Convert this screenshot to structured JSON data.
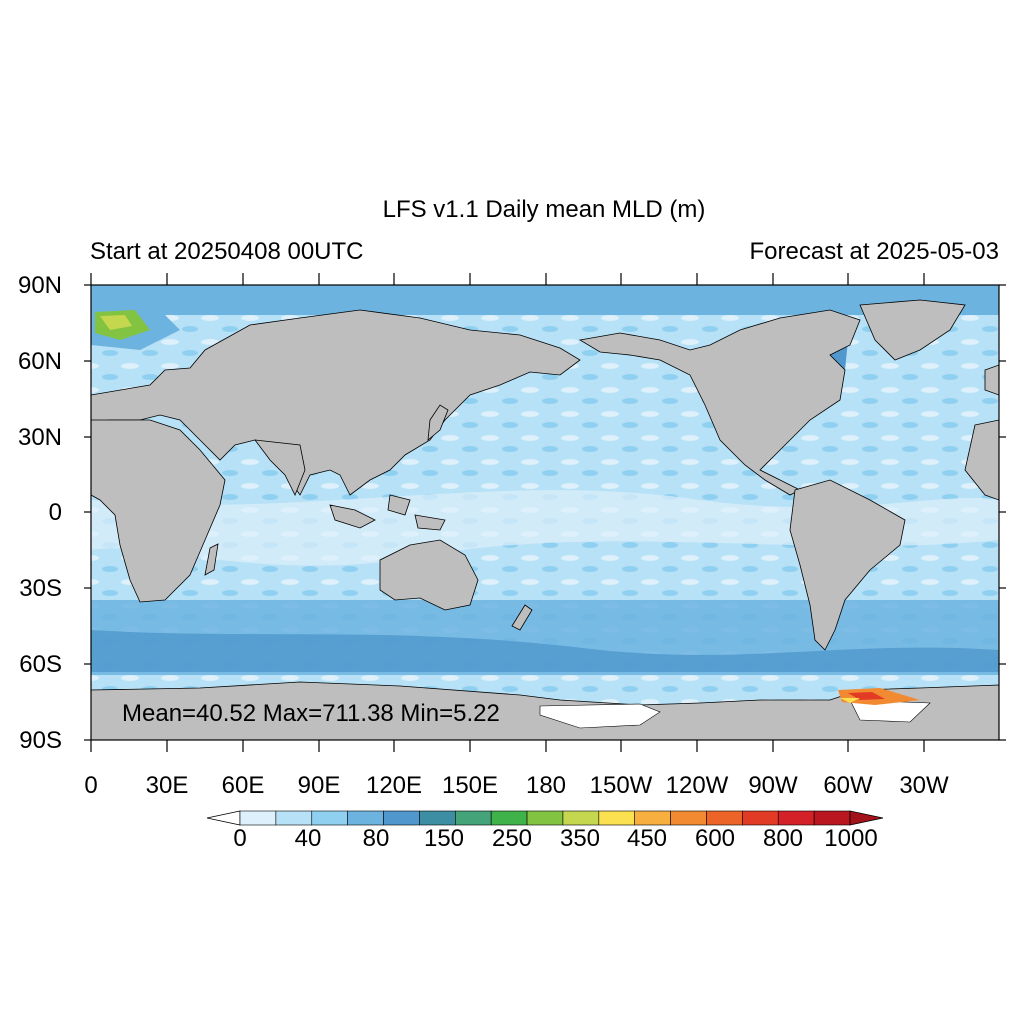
{
  "title": "LFS v1.1 Daily mean MLD (m)",
  "start_label": "Start at 20250408 00UTC",
  "forecast_label": "Forecast at 2025-05-03",
  "stats_label": "Mean=40.52  Max=711.38  Min=5.22",
  "lat_labels": [
    "90N",
    "60N",
    "30N",
    "0",
    "30S",
    "60S",
    "90S"
  ],
  "lon_labels": [
    "0",
    "30E",
    "60E",
    "90E",
    "120E",
    "150E",
    "180",
    "150W",
    "120W",
    "90W",
    "60W",
    "30W"
  ],
  "colorbar": {
    "labels": [
      "0",
      "40",
      "80",
      "150",
      "250",
      "350",
      "450",
      "600",
      "800",
      "1000"
    ],
    "colors": [
      "#ddf0fb",
      "#b7e1f6",
      "#8fd0f0",
      "#6cb3e0",
      "#4f97cc",
      "#3d8ea3",
      "#45a37a",
      "#3fb24a",
      "#82c341",
      "#c5d64f",
      "#fbe04f",
      "#f7b03f",
      "#f28a32",
      "#ec6428",
      "#e23b25",
      "#d42027",
      "#b9161f"
    ],
    "under_color": "#ffffff",
    "over_color": "#a3121a"
  },
  "colors": {
    "land": "#bebebe",
    "ocean_base": "#b7e1f6",
    "ocean_shallow": "#ddf0fb",
    "ocean_mid": "#8fd0f0",
    "ocean_deep": "#6cb3e0",
    "ice": "#ffffff"
  }
}
